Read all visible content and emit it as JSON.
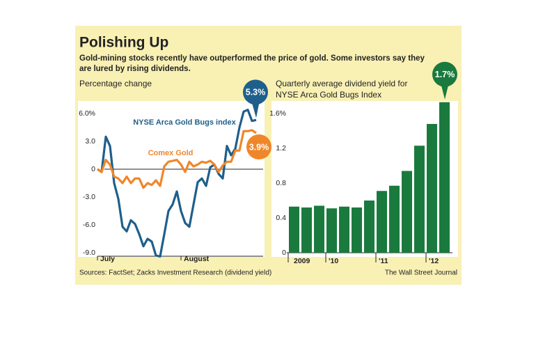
{
  "header": {
    "title": "Polishing Up",
    "subtitle": [
      "Gold-mining stocks recently have outperformed the price of gold. Some investors say they",
      "are lured by rising dividends."
    ]
  },
  "footer": {
    "source": "Sources: FactSet; Zacks Investment Research (dividend yield)",
    "credit": "The Wall Street Journal"
  },
  "chart_data": [
    {
      "type": "line",
      "title": "Percentage change",
      "categories": [
        "July",
        null,
        null,
        null,
        null,
        null,
        null,
        null,
        null,
        null,
        null,
        null,
        null,
        null,
        null,
        null,
        null,
        null,
        null,
        null,
        "August",
        null,
        null,
        null,
        null,
        null,
        null,
        null,
        null,
        null,
        null,
        null,
        null,
        null,
        null,
        null,
        null,
        null,
        null
      ],
      "series": [
        {
          "name": "NYSE Arca Gold Bugs index",
          "color": "#1f5f8b",
          "values": [
            0,
            -0.3,
            3.5,
            2.5,
            -1.5,
            -3.2,
            -6.2,
            -6.7,
            -5.5,
            -5.9,
            -7.0,
            -8.3,
            -7.5,
            -7.8,
            -9.3,
            -9.4,
            -7.0,
            -4.5,
            -3.8,
            -2.4,
            -4.5,
            -5.8,
            -6.2,
            -3.8,
            -1.4,
            -1.0,
            -1.8,
            0.2,
            0.5,
            -0.5,
            -1.0,
            2.5,
            1.5,
            2.2,
            4.5,
            6.2,
            6.4,
            5.2,
            5.3
          ],
          "value_labels": [
            null,
            null,
            null,
            null,
            null,
            null,
            null,
            null,
            null,
            null,
            null,
            null,
            null,
            null,
            null,
            null,
            null,
            null,
            null,
            null,
            null,
            null,
            null,
            null,
            null,
            null,
            null,
            null,
            null,
            null,
            null,
            null,
            null,
            null,
            null,
            null,
            null,
            null,
            "5.3%"
          ]
        },
        {
          "name": "Comex Gold",
          "color": "#f0862a",
          "values": [
            0,
            -0.3,
            1.0,
            0.5,
            -0.8,
            -1.0,
            -1.5,
            -0.8,
            -1.5,
            -1.0,
            -1.0,
            -2.0,
            -1.5,
            -1.7,
            -1.2,
            -1.8,
            0.3,
            0.8,
            0.9,
            1.0,
            0.5,
            -0.3,
            0.8,
            0.3,
            0.5,
            0.8,
            0.7,
            0.9,
            0.5,
            -0.3,
            0.4,
            0.8,
            0.8,
            2.0,
            2.0,
            4.1,
            4.1,
            4.2,
            3.9
          ],
          "value_labels": [
            null,
            null,
            null,
            null,
            null,
            null,
            null,
            null,
            null,
            null,
            null,
            null,
            null,
            null,
            null,
            null,
            null,
            null,
            null,
            null,
            null,
            null,
            null,
            null,
            null,
            null,
            null,
            null,
            null,
            null,
            null,
            null,
            null,
            null,
            null,
            null,
            null,
            null,
            "3.9%"
          ]
        }
      ],
      "ylim": [
        -9.6,
        7.5
      ],
      "yticks": [
        {
          "value": 6,
          "label": "6.0%"
        },
        {
          "value": 3,
          "label": "3.0"
        },
        0,
        {
          "value": -3,
          "label": "-3.0"
        },
        {
          "value": -6,
          "label": "-6.0"
        },
        {
          "value": -9,
          "label": "-9.0"
        }
      ]
    },
    {
      "type": "bar",
      "title": [
        "Quarterly average dividend yield for",
        "NYSE Arca Gold Bugs Index"
      ],
      "categories": [
        "2009",
        null,
        null,
        "'10",
        null,
        null,
        null,
        "'11",
        null,
        null,
        null,
        "'12",
        null
      ],
      "values": [
        0.53,
        0.52,
        0.54,
        0.51,
        0.53,
        0.52,
        0.6,
        0.71,
        0.77,
        0.94,
        1.23,
        1.48,
        1.73
      ],
      "value_labels": [
        null,
        null,
        null,
        null,
        null,
        null,
        null,
        null,
        null,
        null,
        null,
        null,
        "1.7%"
      ],
      "color": "#1a7a3e",
      "ylim": [
        0,
        1.8
      ],
      "yticks": [
        {
          "value": 1.6,
          "label": "1.6%"
        },
        {
          "value": 1.2,
          "label": "1.2"
        },
        {
          "value": 0.8,
          "label": "0.8"
        },
        {
          "value": 0.4,
          "label": "0.4"
        },
        0
      ]
    }
  ]
}
